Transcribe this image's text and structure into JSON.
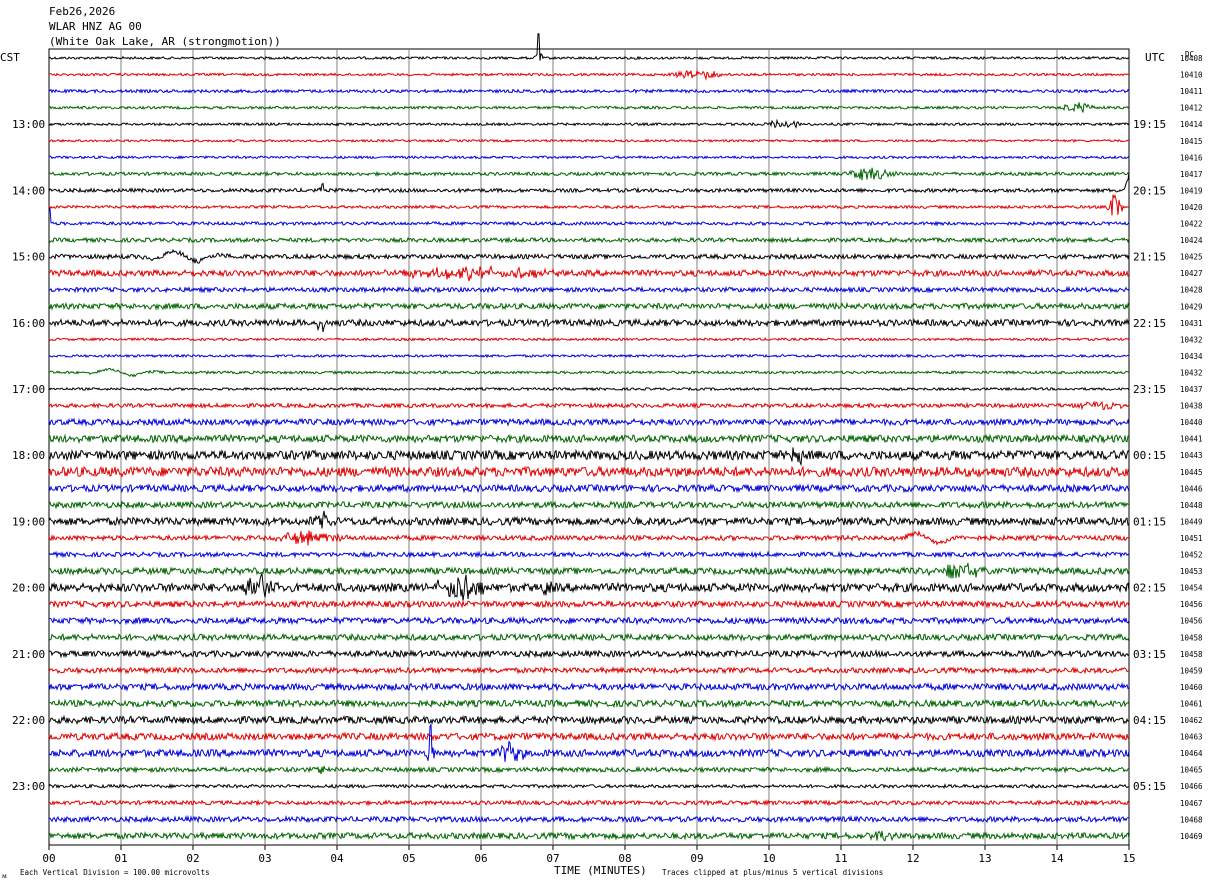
{
  "header": {
    "date": "Feb26,2026",
    "station": "WLAR HNZ AG 00",
    "location": "(White Oak Lake, AR (strongmotion))"
  },
  "left_axis_label": "CST",
  "right_axis_label": "UTC",
  "dc_label": "DC",
  "footer": {
    "scale_note": "Each Vertical Division =  100.00 microvolts",
    "clip_note": "Traces clipped at plus/minus 5 vertical divisions",
    "corner_mark": "ᴍ"
  },
  "colors": {
    "black": "#000000",
    "red": "#e00000",
    "blue": "#0000dd",
    "green": "#006400",
    "grid": "#808080"
  },
  "chart_data": {
    "type": "helicorder",
    "xlabel": "TIME (MINUTES)",
    "x_ticks": [
      "00",
      "01",
      "02",
      "03",
      "04",
      "05",
      "06",
      "07",
      "08",
      "09",
      "10",
      "11",
      "12",
      "13",
      "14",
      "15"
    ],
    "xlim": [
      0,
      15
    ],
    "line_minutes": 15,
    "trace_count": 48,
    "trace_color_cycle": [
      "black",
      "red",
      "blue",
      "green"
    ],
    "left_hour_labels": [
      "13:00",
      "14:00",
      "15:00",
      "16:00",
      "17:00",
      "18:00",
      "19:00",
      "20:00",
      "21:00",
      "22:00",
      "23:00"
    ],
    "right_hour_labels": [
      "19:15",
      "20:15",
      "21:15",
      "22:15",
      "23:15",
      "00:15",
      "01:15",
      "02:15",
      "03:15",
      "04:15",
      "05:15"
    ],
    "hour_label_first_trace": 4,
    "dc_offsets": [
      "10408",
      "10410",
      "10411",
      "10412",
      "10414",
      "10415",
      "10416",
      "10417",
      "10419",
      "10420",
      "10422",
      "10424",
      "10425",
      "10427",
      "10428",
      "10429",
      "10431",
      "10432",
      "10434",
      "10432",
      "10437",
      "10438",
      "10440",
      "10441",
      "10443",
      "10445",
      "10446",
      "10448",
      "10449",
      "10451",
      "10452",
      "10453",
      "10454",
      "10456",
      "10456",
      "10458",
      "10458",
      "10459",
      "10460",
      "10461",
      "10462",
      "10463",
      "10464",
      "10465",
      "10466",
      "10467",
      "10468",
      "10469"
    ],
    "noise_amplitude": [
      1.2,
      1.2,
      1.5,
      1.3,
      1.2,
      1.1,
      1.2,
      1.6,
      1.8,
      1.4,
      1.6,
      2.0,
      2.2,
      3.0,
      2.2,
      2.8,
      3.2,
      1.2,
      1.2,
      1.3,
      1.2,
      2.0,
      3.0,
      3.6,
      4.6,
      4.8,
      3.4,
      3.0,
      3.8,
      2.4,
      2.2,
      3.2,
      4.2,
      3.0,
      3.0,
      3.0,
      3.0,
      2.6,
      3.2,
      3.2,
      3.6,
      3.4,
      3.6,
      2.2,
      1.6,
      2.0,
      2.6,
      3.0
    ],
    "events": [
      {
        "trace": 0,
        "minute": 6.8,
        "amplitude": 24,
        "kind": "spike"
      },
      {
        "trace": 1,
        "minute": 9.0,
        "amplitude": 5,
        "kind": "burst",
        "duration": 1.0
      },
      {
        "trace": 3,
        "minute": 14.3,
        "amplitude": 6,
        "kind": "burst",
        "duration": 0.6
      },
      {
        "trace": 4,
        "minute": 10.2,
        "amplitude": 6,
        "kind": "burst",
        "duration": 0.6
      },
      {
        "trace": 7,
        "minute": 11.4,
        "amplitude": 7,
        "kind": "burst",
        "duration": 0.9
      },
      {
        "trace": 8,
        "minute": 3.8,
        "amplitude": 8,
        "kind": "spike"
      },
      {
        "trace": 8,
        "minute": 15.0,
        "amplitude": 20,
        "kind": "burst",
        "duration": 0.15
      },
      {
        "trace": 9,
        "minute": 14.8,
        "amplitude": 16,
        "kind": "burst",
        "duration": 0.3
      },
      {
        "trace": 10,
        "minute": 0.0,
        "amplitude": 14,
        "kind": "spike"
      },
      {
        "trace": 12,
        "minute": 1.9,
        "amplitude": 6,
        "kind": "wave",
        "duration": 1.4
      },
      {
        "trace": 13,
        "minute": 6.0,
        "amplitude": 6,
        "kind": "burst",
        "duration": 3.0
      },
      {
        "trace": 16,
        "minute": 3.8,
        "amplitude": 8,
        "kind": "burst",
        "duration": 0.3
      },
      {
        "trace": 19,
        "minute": 1.0,
        "amplitude": 4,
        "kind": "wave",
        "duration": 1.2
      },
      {
        "trace": 21,
        "minute": 14.6,
        "amplitude": 5,
        "kind": "burst",
        "duration": 0.7
      },
      {
        "trace": 24,
        "minute": 10.4,
        "amplitude": 12,
        "kind": "burst",
        "duration": 0.3
      },
      {
        "trace": 28,
        "minute": 3.8,
        "amplitude": 8,
        "kind": "burst",
        "duration": 0.4
      },
      {
        "trace": 29,
        "minute": 3.6,
        "amplitude": 7,
        "kind": "burst",
        "duration": 1.2
      },
      {
        "trace": 29,
        "minute": 12.2,
        "amplitude": 6,
        "kind": "wave",
        "duration": 1.2
      },
      {
        "trace": 31,
        "minute": 12.6,
        "amplitude": 8,
        "kind": "burst",
        "duration": 1.0
      },
      {
        "trace": 32,
        "minute": 2.9,
        "amplitude": 16,
        "kind": "burst",
        "duration": 0.8
      },
      {
        "trace": 32,
        "minute": 5.7,
        "amplitude": 16,
        "kind": "burst",
        "duration": 0.9
      },
      {
        "trace": 32,
        "minute": 6.9,
        "amplitude": 8,
        "kind": "burst",
        "duration": 0.3
      },
      {
        "trace": 42,
        "minute": 5.3,
        "amplitude": 30,
        "kind": "spike"
      },
      {
        "trace": 42,
        "minute": 6.4,
        "amplitude": 12,
        "kind": "burst",
        "duration": 0.5
      },
      {
        "trace": 43,
        "minute": 3.8,
        "amplitude": 7,
        "kind": "burst",
        "duration": 0.2
      },
      {
        "trace": 47,
        "minute": 11.5,
        "amplitude": 5,
        "kind": "burst",
        "duration": 0.5
      }
    ]
  }
}
